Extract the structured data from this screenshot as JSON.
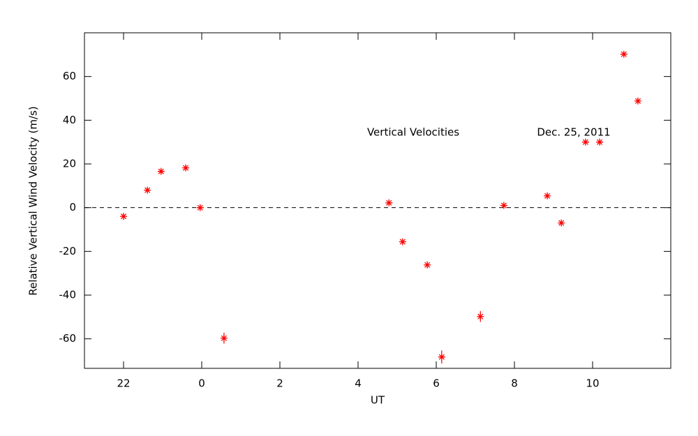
{
  "chart_data": {
    "type": "scatter",
    "y_label": "Relative Vertical Wind Velocity (m/s)",
    "x_label": "UT",
    "annotations": [
      "Vertical Velocities",
      "Dec. 25, 2011"
    ],
    "x": [
      -2.0,
      -1.39,
      -1.04,
      -0.41,
      -0.04,
      0.57,
      4.79,
      5.14,
      5.77,
      6.14,
      7.13,
      7.73,
      8.84,
      9.2,
      9.82,
      10.18,
      10.8,
      11.16
    ],
    "values": [
      -4,
      8,
      16.6,
      18.2,
      0,
      -59.7,
      2.2,
      -15.6,
      -26.2,
      -68.3,
      -49.8,
      1,
      5.4,
      -7,
      30,
      30,
      70.2,
      48.8
    ],
    "errors": [
      1,
      1,
      1,
      1,
      1,
      2.5,
      1,
      1,
      1,
      3,
      2.5,
      1,
      1,
      1,
      1,
      1,
      1,
      1
    ],
    "color": "#ff0000",
    "zero_line": 0,
    "xlim": [
      -3,
      12
    ],
    "xticks": [
      {
        "value": -2,
        "label": "22"
      },
      0,
      2,
      4,
      6,
      8,
      10
    ],
    "ylim": [
      -73.5,
      80
    ],
    "yticks": [
      -60,
      -40,
      -20,
      0,
      20,
      40,
      60
    ]
  }
}
